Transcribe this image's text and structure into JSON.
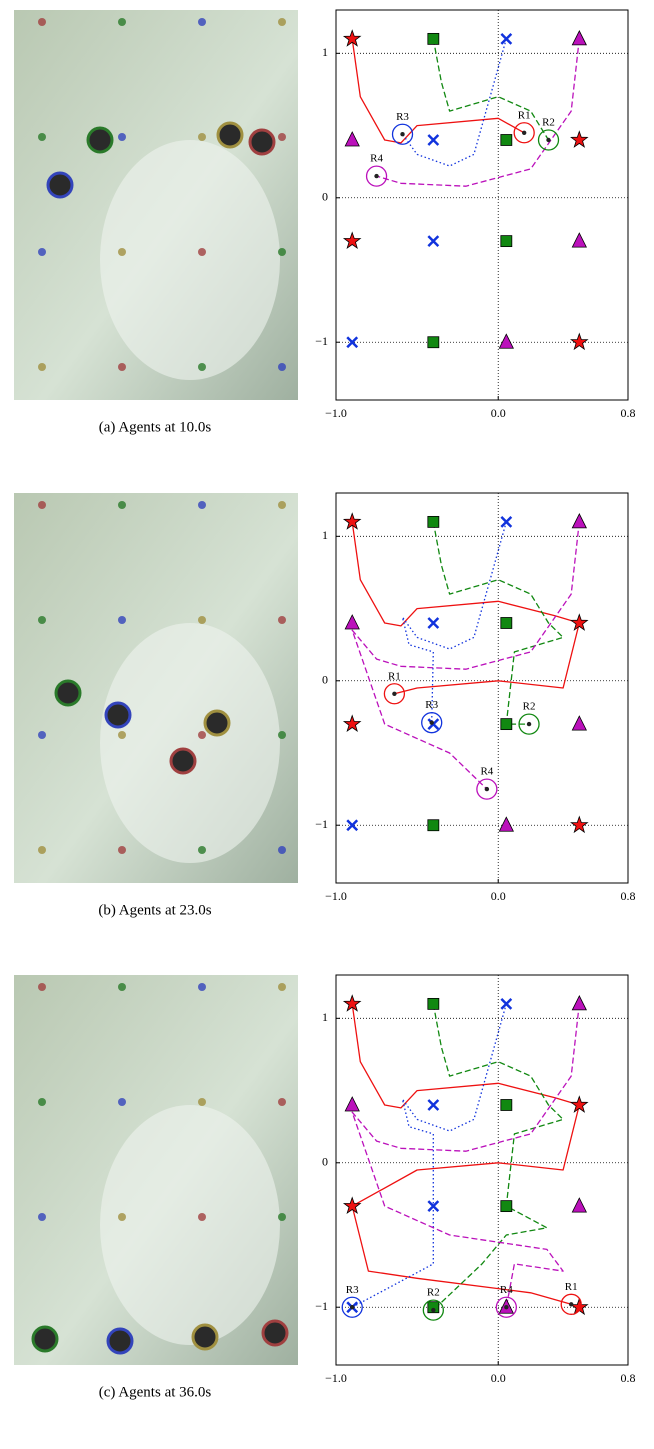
{
  "chart_data": [
    {
      "type": "scatter",
      "caption": "(a) Agents at 10.0s",
      "xlim": [
        -1.0,
        0.8
      ],
      "ylim": [
        -1.4,
        1.3
      ],
      "xticks": [
        {
          "value": -1.0,
          "label": "−1.0"
        },
        {
          "value": 0,
          "label": "0.0"
        },
        {
          "value": 0.8,
          "label": "0.8"
        }
      ],
      "yticks": [
        {
          "value": -1,
          "label": "−1"
        },
        0,
        1
      ],
      "grid": true,
      "series": [
        {
          "marker": "star",
          "color": "#ee1111",
          "x": [
            -0.9,
            0.5,
            -0.9,
            0.5
          ],
          "y": [
            1.1,
            0.4,
            -0.3,
            -1
          ]
        },
        {
          "marker": "square",
          "color": "#118811",
          "x": [
            -0.4,
            0.05,
            0.05,
            -0.4
          ],
          "y": [
            1.1,
            0.4,
            -0.3,
            -1
          ]
        },
        {
          "marker": "cross",
          "color": "#1133dd",
          "x": [
            0.05,
            -0.4,
            -0.4,
            -0.9
          ],
          "y": [
            1.1,
            0.4,
            -0.3,
            -1
          ]
        },
        {
          "marker": "triangle",
          "color": "#bb11bb",
          "x": [
            0.5,
            -0.9,
            0.5,
            0.05
          ],
          "y": [
            1.1,
            0.4,
            -0.3,
            -1
          ]
        },
        {
          "line": "solid",
          "color": "#ee1111",
          "x": [
            -0.9,
            -0.85,
            -0.7,
            -0.6,
            -0.5,
            0.0,
            0.16
          ],
          "y": [
            1.1,
            0.7,
            0.4,
            0.38,
            0.5,
            0.55,
            0.45
          ]
        },
        {
          "line": "dashed",
          "color": "#118811",
          "x": [
            -0.4,
            -0.35,
            -0.3,
            0.0,
            0.2,
            0.31
          ],
          "y": [
            1.1,
            0.8,
            0.6,
            0.7,
            0.6,
            0.4
          ]
        },
        {
          "line": "dotted",
          "color": "#1133dd",
          "x": [
            0.05,
            -0.05,
            -0.15,
            -0.3,
            -0.5,
            -0.59
          ],
          "y": [
            1.1,
            0.7,
            0.3,
            0.22,
            0.3,
            0.44
          ]
        },
        {
          "line": "dashed",
          "color": "#bb11bb",
          "x": [
            0.5,
            0.45,
            0.2,
            -0.2,
            -0.6,
            -0.75
          ],
          "y": [
            1.1,
            0.6,
            0.2,
            0.08,
            0.1,
            0.15
          ]
        },
        {
          "marker": "robot",
          "colors": [
            "#ee1111",
            "#118811",
            "#1133dd",
            "#bb11bb"
          ],
          "labels": [
            "R1",
            "R2",
            "R3",
            "R4"
          ],
          "x": [
            0.16,
            0.31,
            -0.59,
            -0.75
          ],
          "y": [
            0.45,
            0.4,
            0.44,
            0.15
          ]
        }
      ]
    },
    {
      "type": "scatter",
      "caption": "(b) Agents at 23.0s",
      "xlim": [
        -1.0,
        0.8
      ],
      "ylim": [
        -1.4,
        1.3
      ],
      "xticks": [
        {
          "value": -1.0,
          "label": "−1.0"
        },
        {
          "value": 0,
          "label": "0.0"
        },
        {
          "value": 0.8,
          "label": "0.8"
        }
      ],
      "yticks": [
        {
          "value": -1,
          "label": "−1"
        },
        0,
        1
      ],
      "grid": true,
      "series": [
        {
          "marker": "star",
          "color": "#ee1111",
          "x": [
            -0.9,
            0.5,
            -0.9,
            0.5
          ],
          "y": [
            1.1,
            0.4,
            -0.3,
            -1
          ]
        },
        {
          "marker": "square",
          "color": "#118811",
          "x": [
            -0.4,
            0.05,
            0.05,
            -0.4
          ],
          "y": [
            1.1,
            0.4,
            -0.3,
            -1
          ]
        },
        {
          "marker": "cross",
          "color": "#1133dd",
          "x": [
            0.05,
            -0.4,
            -0.4,
            -0.9
          ],
          "y": [
            1.1,
            0.4,
            -0.3,
            -1
          ]
        },
        {
          "marker": "triangle",
          "color": "#bb11bb",
          "x": [
            0.5,
            -0.9,
            0.5,
            0.05
          ],
          "y": [
            1.1,
            0.4,
            -0.3,
            -1
          ]
        },
        {
          "line": "solid",
          "color": "#ee1111",
          "x": [
            -0.9,
            -0.85,
            -0.7,
            -0.6,
            -0.5,
            0.0,
            0.35,
            0.5,
            0.4,
            0.0,
            -0.5,
            -0.64
          ],
          "y": [
            1.1,
            0.7,
            0.4,
            0.38,
            0.5,
            0.55,
            0.45,
            0.4,
            -0.05,
            0.0,
            -0.05,
            -0.09
          ]
        },
        {
          "line": "dashed",
          "color": "#118811",
          "x": [
            -0.4,
            -0.35,
            -0.3,
            0.0,
            0.2,
            0.31,
            0.4,
            0.1,
            0.05,
            0.19
          ],
          "y": [
            1.1,
            0.8,
            0.6,
            0.7,
            0.6,
            0.4,
            0.3,
            0.2,
            -0.3,
            -0.3
          ]
        },
        {
          "line": "dotted",
          "color": "#1133dd",
          "x": [
            0.05,
            -0.05,
            -0.15,
            -0.3,
            -0.5,
            -0.59,
            -0.55,
            -0.4,
            -0.41
          ],
          "y": [
            1.1,
            0.7,
            0.3,
            0.22,
            0.3,
            0.44,
            0.25,
            0.2,
            -0.29
          ]
        },
        {
          "line": "dashed",
          "color": "#bb11bb",
          "x": [
            0.5,
            0.45,
            0.2,
            -0.2,
            -0.6,
            -0.75,
            -0.9,
            -0.7,
            -0.3,
            -0.07
          ],
          "y": [
            1.1,
            0.6,
            0.2,
            0.08,
            0.1,
            0.15,
            0.35,
            -0.3,
            -0.5,
            -0.75
          ]
        },
        {
          "marker": "robot",
          "colors": [
            "#ee1111",
            "#118811",
            "#1133dd",
            "#bb11bb"
          ],
          "labels": [
            "R1",
            "R2",
            "R3",
            "R4"
          ],
          "x": [
            -0.64,
            0.19,
            -0.41,
            -0.07
          ],
          "y": [
            -0.09,
            -0.3,
            -0.29,
            -0.75
          ]
        }
      ]
    },
    {
      "type": "scatter",
      "caption": "(c) Agents at 36.0s",
      "xlim": [
        -1.0,
        0.8
      ],
      "ylim": [
        -1.4,
        1.3
      ],
      "xticks": [
        {
          "value": -1.0,
          "label": "−1.0"
        },
        {
          "value": 0,
          "label": "0.0"
        },
        {
          "value": 0.8,
          "label": "0.8"
        }
      ],
      "yticks": [
        {
          "value": -1,
          "label": "−1"
        },
        0,
        1
      ],
      "grid": true,
      "series": [
        {
          "marker": "star",
          "color": "#ee1111",
          "x": [
            -0.9,
            0.5,
            -0.9,
            0.5
          ],
          "y": [
            1.1,
            0.4,
            -0.3,
            -1
          ]
        },
        {
          "marker": "square",
          "color": "#118811",
          "x": [
            -0.4,
            0.05,
            0.05,
            -0.4
          ],
          "y": [
            1.1,
            0.4,
            -0.3,
            -1
          ]
        },
        {
          "marker": "cross",
          "color": "#1133dd",
          "x": [
            0.05,
            -0.4,
            -0.4,
            -0.9
          ],
          "y": [
            1.1,
            0.4,
            -0.3,
            -1
          ]
        },
        {
          "marker": "triangle",
          "color": "#bb11bb",
          "x": [
            0.5,
            -0.9,
            0.5,
            0.05
          ],
          "y": [
            1.1,
            0.4,
            -0.3,
            -1
          ]
        },
        {
          "line": "solid",
          "color": "#ee1111",
          "x": [
            -0.9,
            -0.85,
            -0.7,
            -0.6,
            -0.5,
            0.0,
            0.35,
            0.5,
            0.4,
            0.0,
            -0.5,
            -0.9,
            -0.8,
            -0.5,
            0.2,
            0.45
          ],
          "y": [
            1.1,
            0.7,
            0.4,
            0.38,
            0.5,
            0.55,
            0.45,
            0.4,
            -0.05,
            0.0,
            -0.05,
            -0.3,
            -0.75,
            -0.8,
            -0.9,
            -0.98
          ]
        },
        {
          "line": "dashed",
          "color": "#118811",
          "x": [
            -0.4,
            -0.35,
            -0.3,
            0.0,
            0.2,
            0.31,
            0.4,
            0.1,
            0.05,
            0.3,
            0.05,
            -0.1,
            -0.4
          ],
          "y": [
            1.1,
            0.8,
            0.6,
            0.7,
            0.6,
            0.4,
            0.3,
            0.2,
            -0.3,
            -0.45,
            -0.5,
            -0.7,
            -1.02
          ]
        },
        {
          "line": "dotted",
          "color": "#1133dd",
          "x": [
            0.05,
            -0.05,
            -0.15,
            -0.3,
            -0.5,
            -0.59,
            -0.55,
            -0.4,
            -0.4,
            -0.65,
            -0.9
          ],
          "y": [
            1.1,
            0.7,
            0.3,
            0.22,
            0.3,
            0.44,
            0.25,
            0.2,
            -0.7,
            -0.85,
            -1.0
          ]
        },
        {
          "line": "dashed",
          "color": "#bb11bb",
          "x": [
            0.5,
            0.45,
            0.2,
            -0.2,
            -0.6,
            -0.75,
            -0.9,
            -0.7,
            -0.3,
            0.3,
            0.4,
            0.1,
            0.05
          ],
          "y": [
            1.1,
            0.6,
            0.2,
            0.08,
            0.1,
            0.15,
            0.35,
            -0.3,
            -0.5,
            -0.6,
            -0.75,
            -0.7,
            -1.0
          ]
        },
        {
          "marker": "robot",
          "colors": [
            "#ee1111",
            "#118811",
            "#1133dd",
            "#bb11bb"
          ],
          "labels": [
            "R1",
            "R2",
            "R3",
            "R4"
          ],
          "x": [
            0.45,
            -0.4,
            -0.9,
            0.05
          ],
          "y": [
            -0.98,
            -1.02,
            -1.0,
            -1.0
          ]
        }
      ]
    }
  ]
}
